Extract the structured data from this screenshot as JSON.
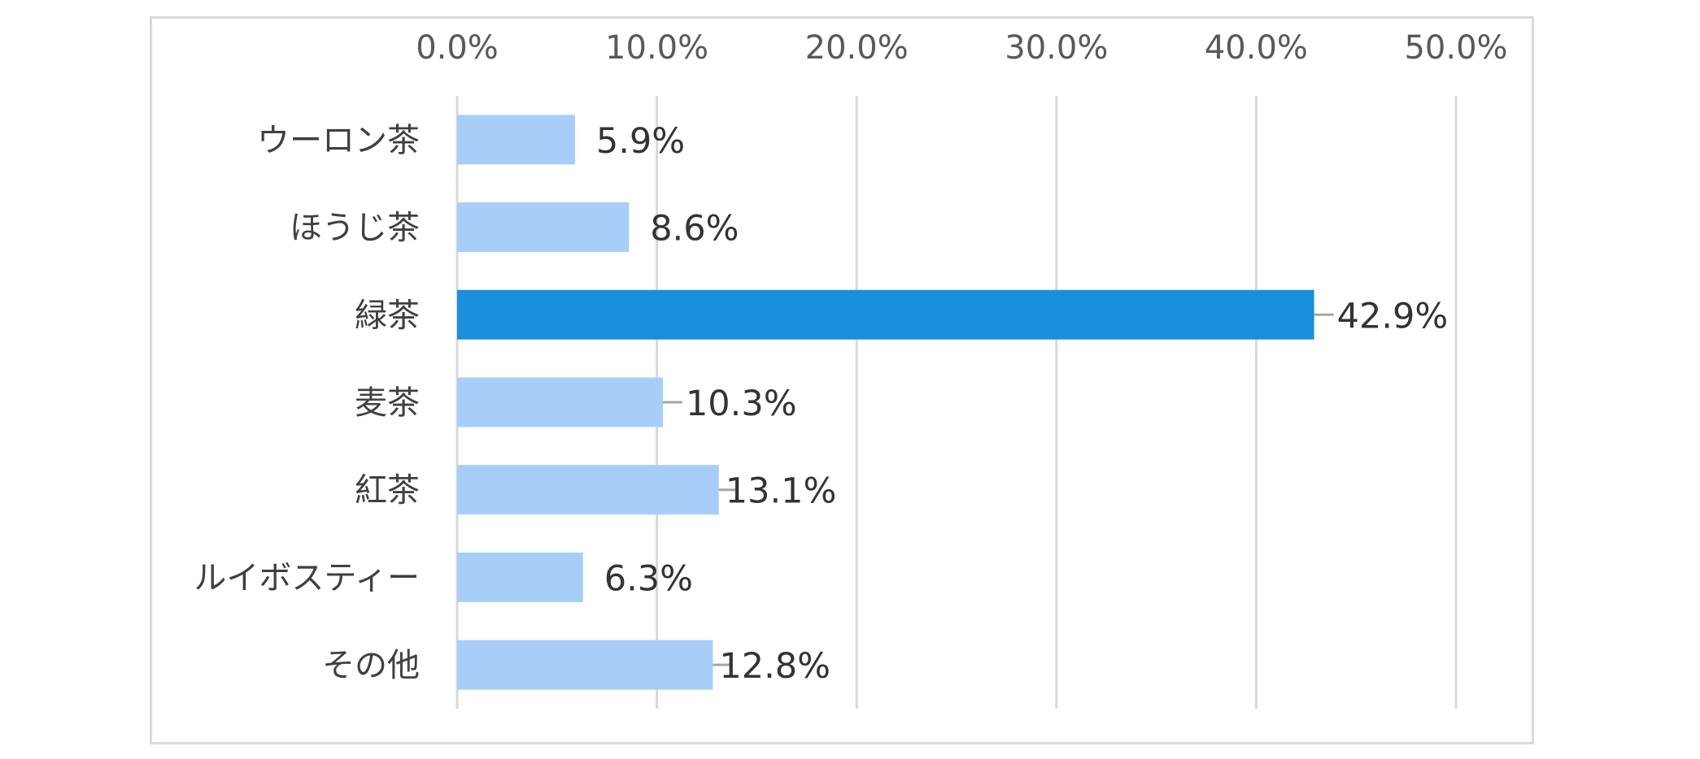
{
  "chart_data": {
    "type": "bar",
    "orientation": "horizontal",
    "categories": [
      "ウーロン茶",
      "ほうじ茶",
      "緑茶",
      "麦茶",
      "紅茶",
      "ルイボスティー",
      "その他"
    ],
    "values": [
      5.9,
      8.6,
      42.9,
      10.3,
      13.1,
      6.3,
      12.8
    ],
    "data_labels": [
      "5.9%",
      "8.6%",
      "42.9%",
      "10.3%",
      "13.1%",
      "6.3%",
      "12.8%"
    ],
    "xlim": [
      0,
      50
    ],
    "x_ticks": [
      0,
      10,
      20,
      30,
      40,
      50
    ],
    "x_tick_labels": [
      "0.0%",
      "10.0%",
      "20.0%",
      "30.0%",
      "40.0%",
      "50.0%"
    ],
    "x_axis_position": "top",
    "grid": true,
    "legend": "none",
    "highlight_category": "緑茶",
    "colors": {
      "bar": "#a6cef8",
      "highlight": "#1a8fdc",
      "grid": "#d9d9d9",
      "leader": "#a6a6a6",
      "frame": "#d9d9d9"
    }
  }
}
